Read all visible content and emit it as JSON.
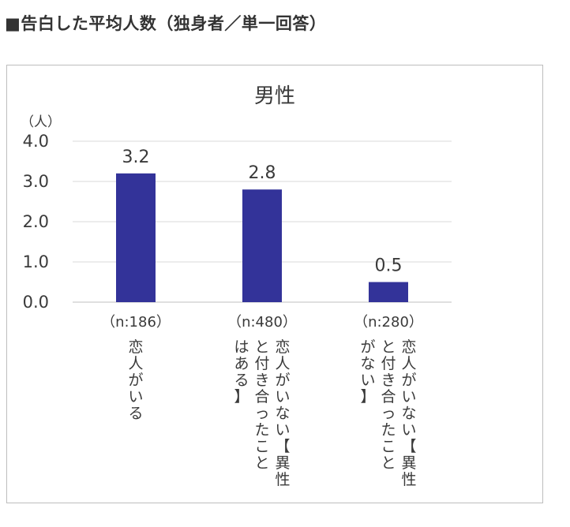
{
  "heading": "■告白した平均人数（独身者／単一回答）",
  "chart_data": {
    "type": "bar",
    "title": "男性",
    "unit_label": "（人）",
    "ylim": [
      0,
      4
    ],
    "yticks": [
      "0.0",
      "1.0",
      "2.0",
      "3.0",
      "4.0"
    ],
    "grid": true,
    "color": "#333399",
    "categories": [
      {
        "n": "（n:186）",
        "label_columns": [
          "恋人がいる"
        ]
      },
      {
        "n": "（n:480）",
        "label_columns": [
          "恋人がいない【異性",
          "と付き合ったこと",
          "はある】"
        ]
      },
      {
        "n": "（n:280）",
        "label_columns": [
          "恋人がいない【異性",
          "と付き合ったこと",
          "がない】"
        ]
      }
    ],
    "values": [
      3.2,
      2.8,
      0.5
    ],
    "value_labels": [
      "3.2",
      "2.8",
      "0.5"
    ]
  }
}
